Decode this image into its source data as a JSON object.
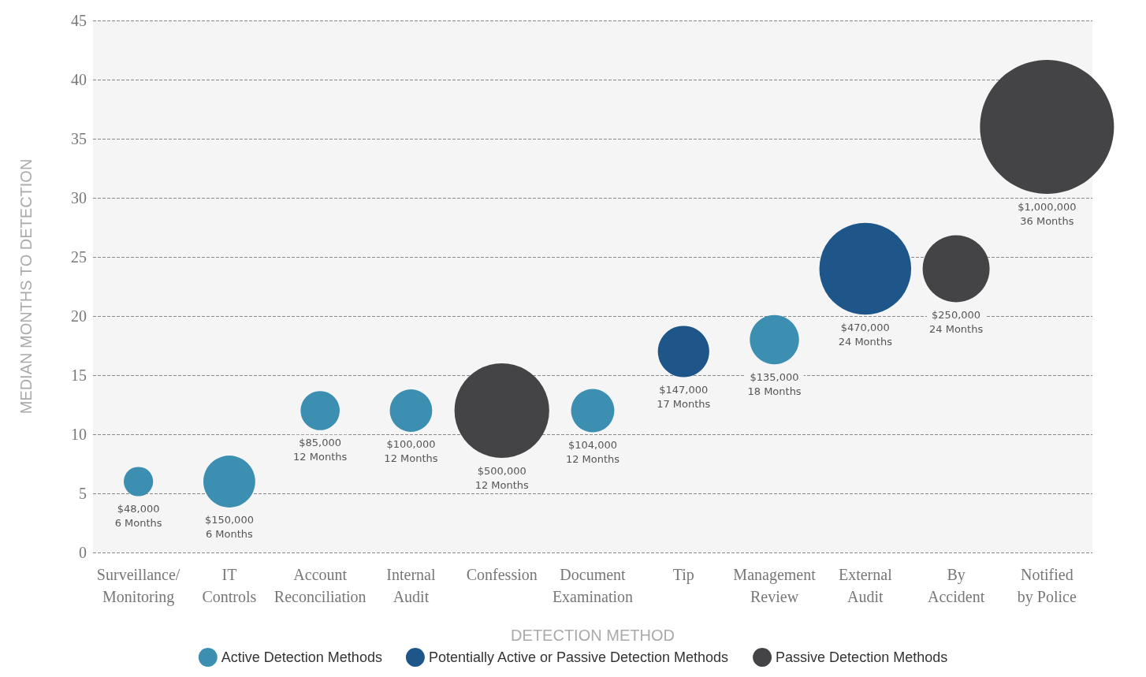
{
  "chart_data": {
    "type": "bubble",
    "xlabel": "DETECTION METHOD",
    "ylabel": "MEDIAN MONTHS TO DETECTION",
    "categories": [
      "Surveillance/\nMonitoring",
      "IT\nControls",
      "Account\nReconciliation",
      "Internal\nAudit",
      "Confession",
      "Document\nExamination",
      "Tip",
      "Management\nReview",
      "External\nAudit",
      "By\nAccident",
      "Notified\nby Police"
    ],
    "series": [
      {
        "name": "Active Detection Methods",
        "color": "#3d8fb1",
        "values": [
          6,
          6,
          12,
          12,
          null,
          12,
          null,
          18,
          null,
          null,
          null
        ],
        "sizes": [
          0.048,
          0.15,
          0.085,
          0.1,
          null,
          0.104,
          null,
          0.135,
          null,
          null,
          null
        ],
        "value_labels": [
          "$48,000\n6 Months",
          "$150,000\n6 Months",
          "$85,000\n12 Months",
          "$100,000\n12 Months",
          null,
          "$104,000\n12 Months",
          null,
          "$135,000\n18 Months",
          null,
          null,
          null
        ]
      },
      {
        "name": "Potentially Active or Passive Detection Methods",
        "color": "#1f568a",
        "values": [
          null,
          null,
          null,
          null,
          null,
          null,
          17,
          null,
          24,
          null,
          null
        ],
        "sizes": [
          null,
          null,
          null,
          null,
          null,
          null,
          0.147,
          null,
          0.47,
          null,
          null
        ],
        "value_labels": [
          null,
          null,
          null,
          null,
          null,
          null,
          "$147,000\n17 Months",
          null,
          "$470,000\n24 Months",
          null,
          null
        ]
      },
      {
        "name": "Passive Detection Methods",
        "color": "#444446",
        "values": [
          null,
          null,
          null,
          null,
          12,
          null,
          null,
          null,
          null,
          24,
          36
        ],
        "sizes": [
          null,
          null,
          null,
          null,
          0.5,
          null,
          null,
          null,
          null,
          0.25,
          1
        ],
        "value_labels": [
          null,
          null,
          null,
          null,
          "$500,000\n12 Months",
          null,
          null,
          null,
          null,
          "$250,000\n24 Months",
          "$1,000,000\n36 Months"
        ]
      }
    ],
    "ylim": [
      0,
      45
    ],
    "yticks": [
      0,
      5,
      10,
      15,
      20,
      25,
      30,
      35,
      40,
      45
    ],
    "grid": "y",
    "legend": "bottom"
  }
}
